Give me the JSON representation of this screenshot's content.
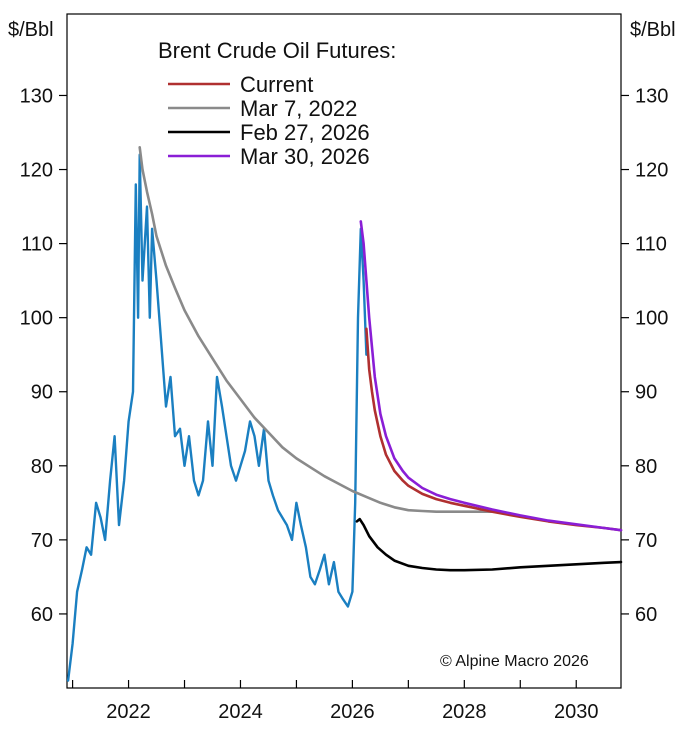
{
  "chart_data": {
    "type": "line",
    "title": "",
    "xlabel": "",
    "ylabel": "$/Bbl",
    "y_unit_left": "$/Bbl",
    "y_unit_right": "$/Bbl",
    "xlim": [
      2020.9,
      2030.8
    ],
    "ylim": [
      50,
      141
    ],
    "x_ticks": [
      2022,
      2024,
      2026,
      2028,
      2030
    ],
    "x_tick_labels": [
      "2022",
      "2024",
      "2026",
      "2028",
      "2030"
    ],
    "y_ticks": [
      60,
      70,
      80,
      90,
      100,
      110,
      120,
      130
    ],
    "y_tick_labels": [
      "60",
      "70",
      "80",
      "90",
      "100",
      "110",
      "120",
      "130"
    ],
    "grid": false,
    "legend": {
      "title": "Brent Crude Oil Futures:",
      "position": "top-center",
      "entries": [
        "Current",
        "Mar 7, 2022",
        "Feb 27, 2026",
        "Mar 30, 2026"
      ]
    },
    "annotation": "© Alpine Macro 2026",
    "colors": {
      "spot": "#1a7fc1",
      "current": "#b03030",
      "mar_7_2022": "#8a8a8a",
      "feb_27_2026": "#000000",
      "mar_30_2026": "#8a1ed6"
    },
    "series": [
      {
        "key": "spot",
        "color": "#1a7fc1",
        "x": [
          2020.92,
          2021.0,
          2021.08,
          2021.17,
          2021.25,
          2021.33,
          2021.42,
          2021.5,
          2021.58,
          2021.67,
          2021.75,
          2021.83,
          2021.92,
          2022.0,
          2022.08,
          2022.13,
          2022.17,
          2022.2,
          2022.25,
          2022.33,
          2022.38,
          2022.42,
          2022.5,
          2022.58,
          2022.67,
          2022.75,
          2022.83,
          2022.92,
          2023.0,
          2023.08,
          2023.17,
          2023.25,
          2023.33,
          2023.42,
          2023.5,
          2023.58,
          2023.67,
          2023.75,
          2023.83,
          2023.92,
          2024.0,
          2024.08,
          2024.17,
          2024.25,
          2024.33,
          2024.42,
          2024.5,
          2024.58,
          2024.67,
          2024.75,
          2024.83,
          2024.92,
          2025.0,
          2025.08,
          2025.17,
          2025.25,
          2025.33,
          2025.42,
          2025.5,
          2025.58,
          2025.67,
          2025.75,
          2025.83,
          2025.92,
          2026.0,
          2026.05,
          2026.1,
          2026.15,
          2026.2,
          2026.25
        ],
        "y": [
          51,
          56,
          63,
          66,
          69,
          68,
          75,
          73,
          70,
          78,
          84,
          72,
          78,
          86,
          90,
          118,
          100,
          122,
          105,
          115,
          100,
          112,
          105,
          97,
          88,
          92,
          84,
          85,
          80,
          84,
          78,
          76,
          78,
          86,
          80,
          92,
          88,
          84,
          80,
          78,
          80,
          82,
          86,
          84,
          80,
          85,
          78,
          76,
          74,
          73,
          72,
          70,
          75,
          72,
          69,
          65,
          64,
          66,
          68,
          64,
          67,
          63,
          62,
          61,
          63,
          75,
          100,
          112,
          105,
          95
        ]
      },
      {
        "key": "mar_7_2022",
        "name": "Mar 7, 2022",
        "color": "#8a8a8a",
        "x": [
          2022.2,
          2022.25,
          2022.33,
          2022.42,
          2022.5,
          2022.67,
          2022.83,
          2023.0,
          2023.25,
          2023.5,
          2023.75,
          2024.0,
          2024.25,
          2024.5,
          2024.75,
          2025.0,
          2025.25,
          2025.5,
          2025.75,
          2026.0,
          2026.25,
          2026.5,
          2026.75,
          2027.0,
          2027.25,
          2027.5,
          2027.75,
          2028.0,
          2028.25,
          2028.5
        ],
        "y": [
          123,
          120,
          117,
          114,
          111,
          107,
          104,
          101,
          97.5,
          94.5,
          91.5,
          89,
          86.5,
          84.5,
          82.5,
          81,
          79.8,
          78.6,
          77.6,
          76.6,
          75.8,
          75,
          74.4,
          74,
          73.9,
          73.8,
          73.8,
          73.8,
          73.8,
          73.8
        ]
      },
      {
        "key": "current",
        "name": "Current",
        "color": "#b03030",
        "x": [
          2026.25,
          2026.3,
          2026.35,
          2026.4,
          2026.5,
          2026.6,
          2026.75,
          2026.9,
          2027.0,
          2027.25,
          2027.5,
          2027.75,
          2028.0,
          2028.5,
          2029.0,
          2029.5,
          2030.0,
          2030.5,
          2030.8
        ],
        "y": [
          98.5,
          93,
          90,
          87.5,
          84,
          81.5,
          79.3,
          78,
          77.3,
          76.2,
          75.5,
          75,
          74.6,
          73.8,
          73.1,
          72.5,
          72,
          71.6,
          71.3
        ]
      },
      {
        "key": "feb_27_2026",
        "name": "Feb 27, 2026",
        "color": "#000000",
        "x": [
          2026.08,
          2026.13,
          2026.2,
          2026.3,
          2026.45,
          2026.6,
          2026.75,
          2027.0,
          2027.25,
          2027.5,
          2027.75,
          2028.0,
          2028.5,
          2029.0,
          2029.5,
          2030.0,
          2030.5,
          2030.8
        ],
        "y": [
          72.5,
          72.8,
          72,
          70.5,
          69,
          68,
          67.2,
          66.5,
          66.2,
          66,
          65.9,
          65.9,
          66,
          66.3,
          66.5,
          66.7,
          66.9,
          67
        ]
      },
      {
        "key": "mar_30_2026",
        "name": "Mar 30, 2026",
        "color": "#8a1ed6",
        "x": [
          2026.15,
          2026.2,
          2026.25,
          2026.3,
          2026.35,
          2026.4,
          2026.5,
          2026.6,
          2026.75,
          2026.9,
          2027.0,
          2027.25,
          2027.5,
          2027.75,
          2028.0,
          2028.5,
          2029.0,
          2029.5,
          2030.0,
          2030.5,
          2030.8
        ],
        "y": [
          113,
          110,
          105,
          100,
          96,
          92,
          87,
          84,
          81,
          79.3,
          78.4,
          77,
          76.1,
          75.5,
          75,
          74.1,
          73.3,
          72.6,
          72.1,
          71.6,
          71.3
        ]
      }
    ]
  }
}
